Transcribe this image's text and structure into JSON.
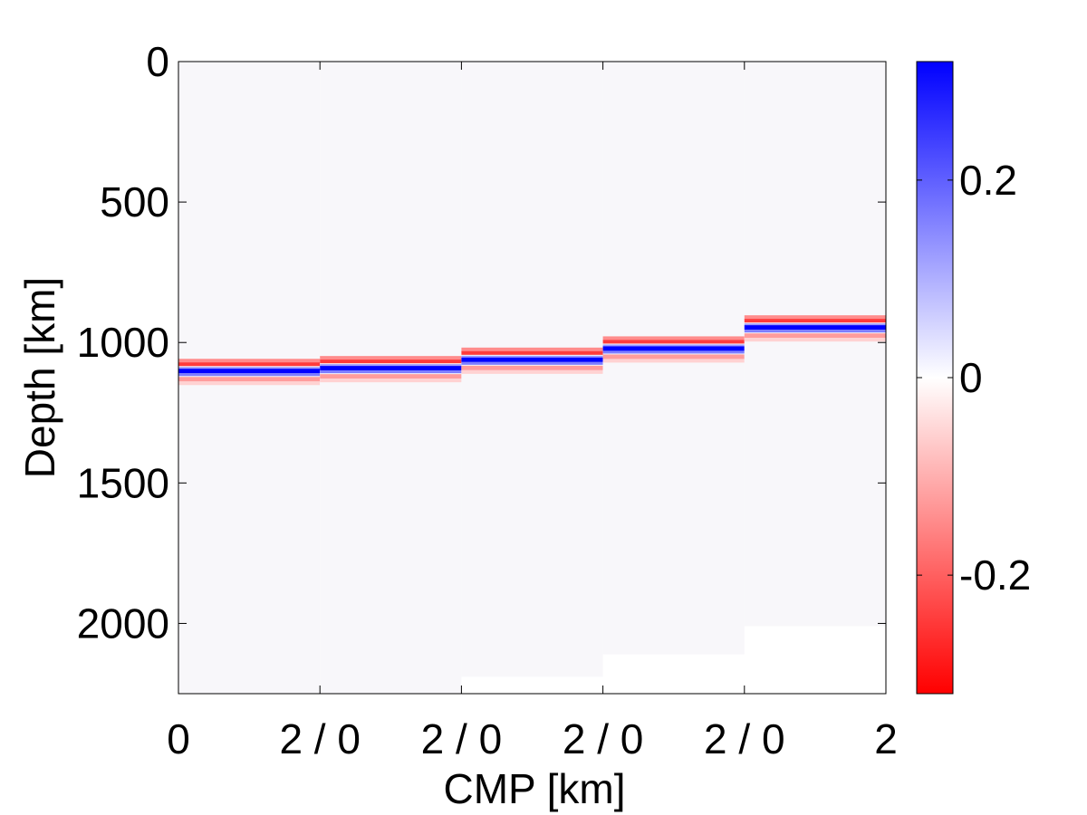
{
  "chart_data": {
    "type": "heatmap",
    "title": "",
    "xlabel": "CMP [km]",
    "ylabel": "Depth [km]",
    "ylim": [
      0,
      2250
    ],
    "y_ticks": [
      0,
      500,
      1000,
      1500,
      2000
    ],
    "y_tick_labels": [
      "0",
      "500",
      "1000",
      "1500",
      "2000"
    ],
    "x_tick_labels": [
      "0",
      "2 / 0",
      "2 / 0",
      "2 / 0",
      "2 / 0",
      "2"
    ],
    "panel_width_km": 2,
    "panels": [
      {
        "name": "panel-1",
        "reflector_depth": 1100,
        "data_end_depth": 2250
      },
      {
        "name": "panel-2",
        "reflector_depth": 1090,
        "data_end_depth": 2250
      },
      {
        "name": "panel-3",
        "reflector_depth": 1060,
        "data_end_depth": 2190
      },
      {
        "name": "panel-4",
        "reflector_depth": 1020,
        "data_end_depth": 2110
      },
      {
        "name": "panel-5",
        "reflector_depth": 945,
        "data_end_depth": 2010
      }
    ],
    "colorbar": {
      "range": [
        -0.32,
        0.32
      ],
      "ticks": [
        0.2,
        0,
        -0.2
      ],
      "tick_labels": [
        "0.2",
        "0",
        "-0.2"
      ],
      "colors": {
        "min": "#ff0000",
        "mid": "#ffffff",
        "max": "#0000ff"
      }
    },
    "grid": false
  }
}
